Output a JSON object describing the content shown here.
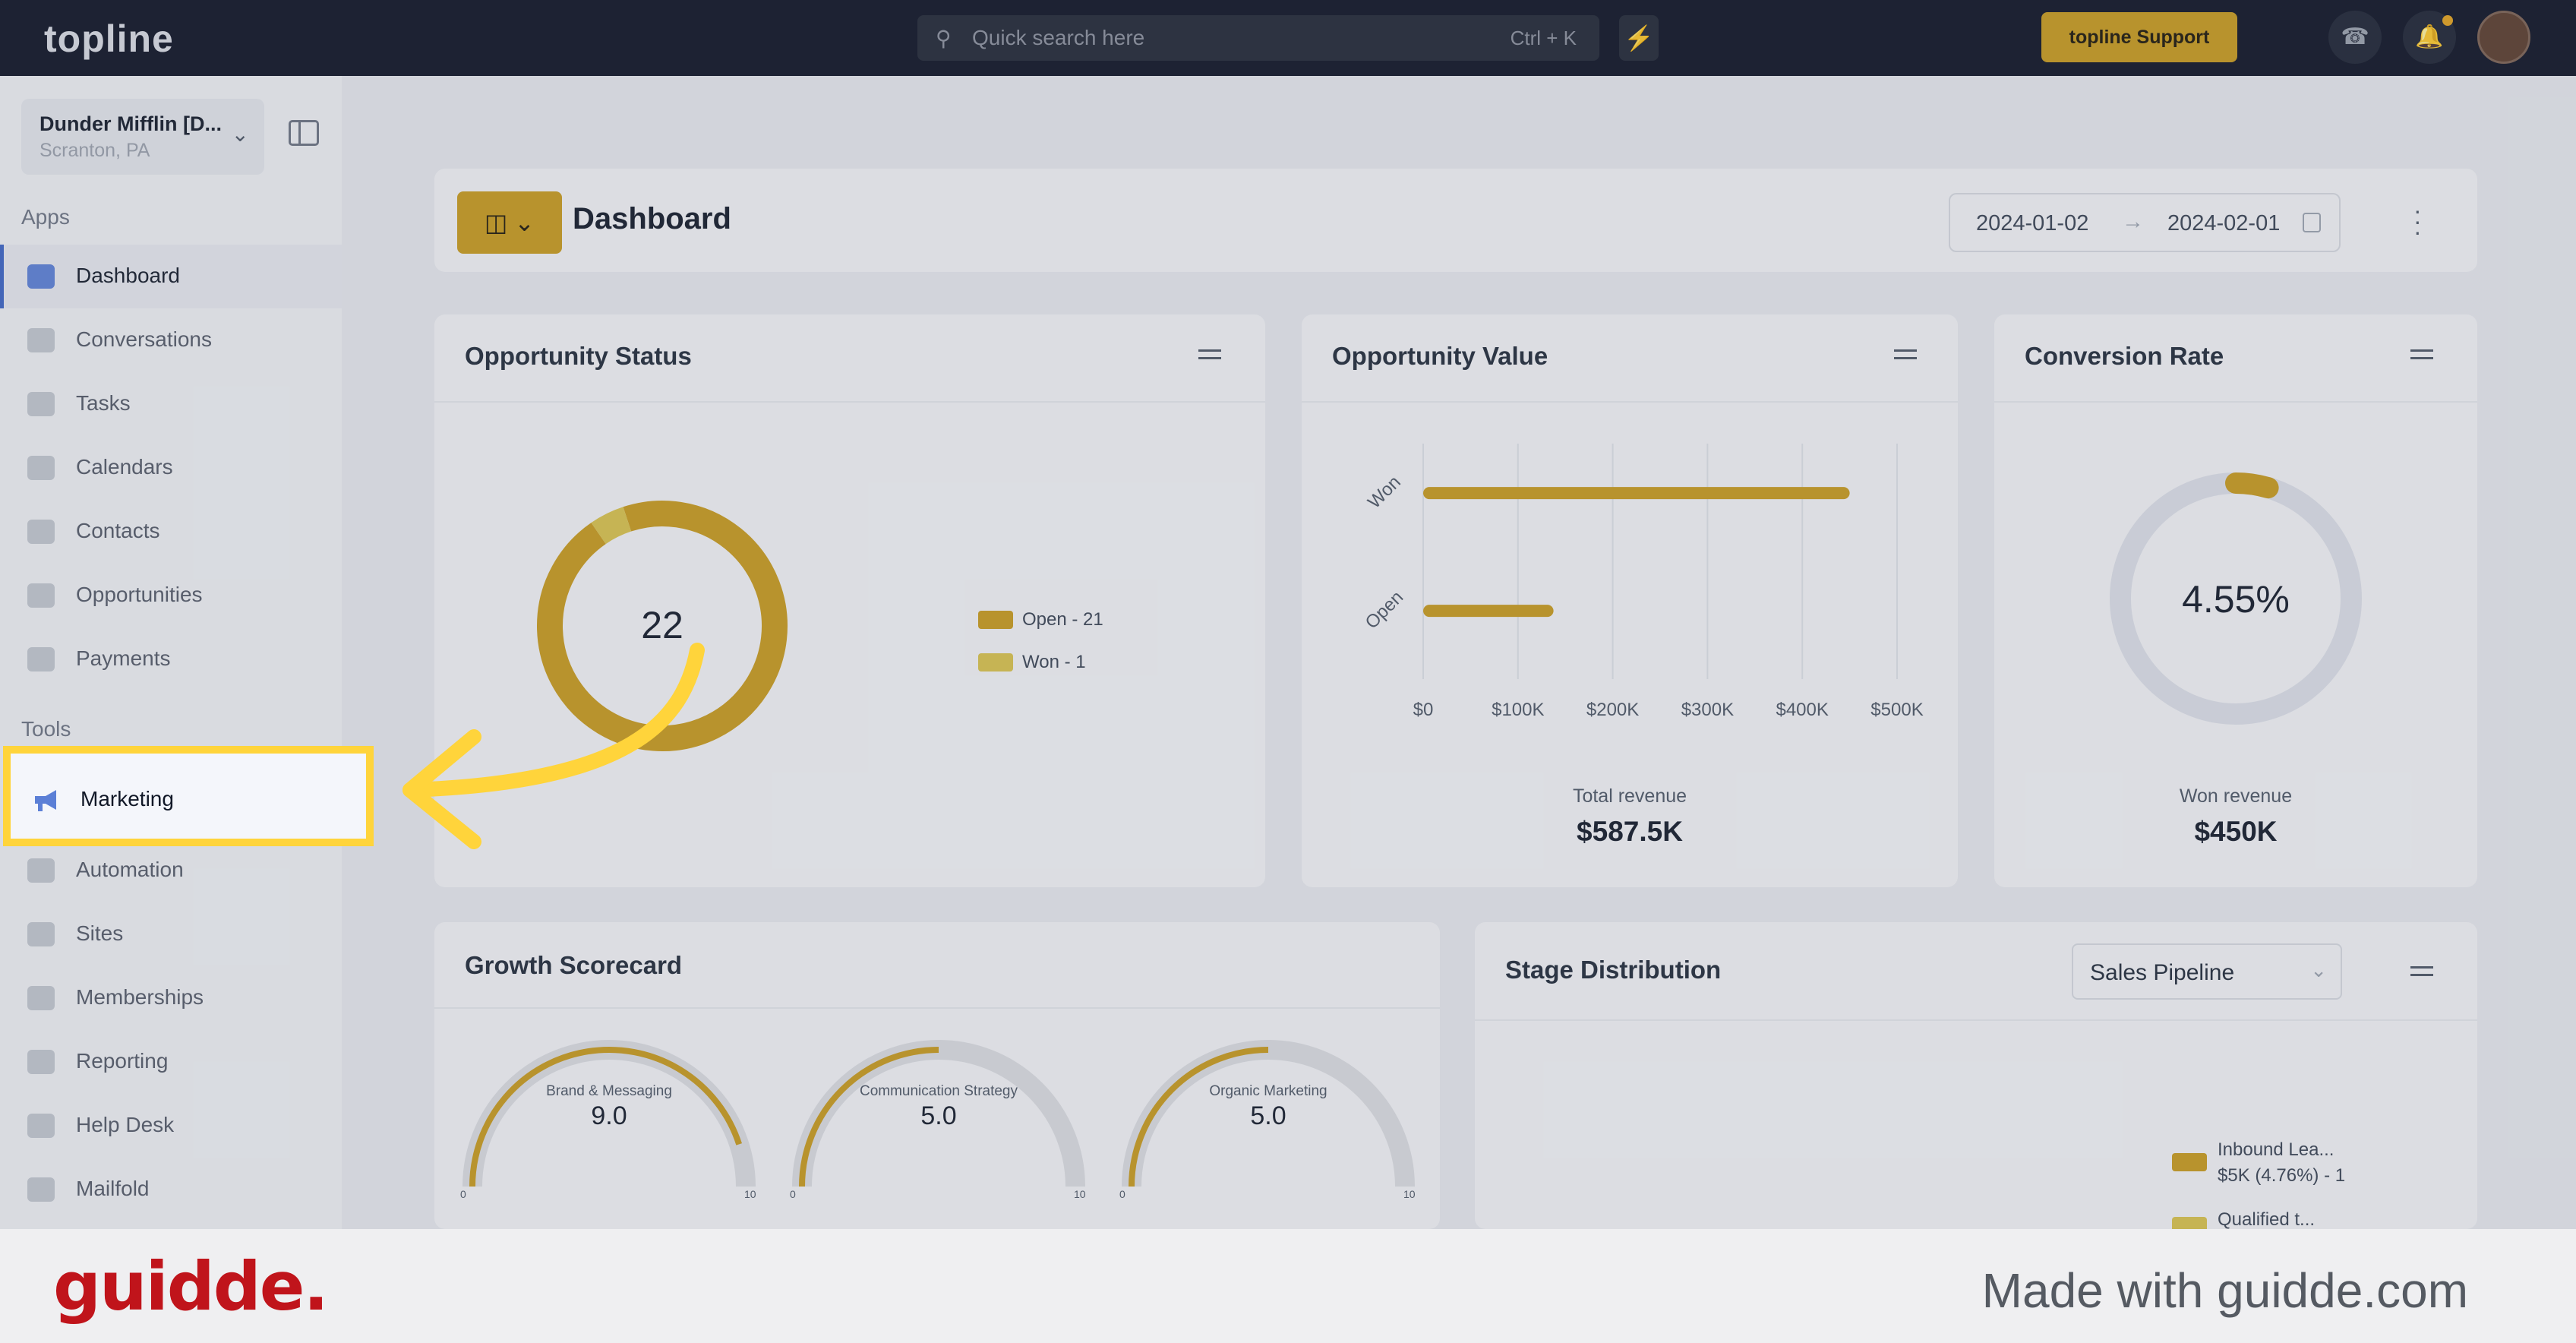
{
  "topbar": {
    "logo": "topline",
    "search_placeholder": "Quick search here",
    "search_shortcut": "Ctrl + K",
    "support_label": "topline Support"
  },
  "sidebar": {
    "company_name": "Dunder Mifflin [D...",
    "company_location": "Scranton, PA",
    "apps_heading": "Apps",
    "apps": [
      {
        "label": "Dashboard",
        "icon": "dashboard-icon",
        "active": true
      },
      {
        "label": "Conversations",
        "icon": "chat-icon"
      },
      {
        "label": "Tasks",
        "icon": "task-icon"
      },
      {
        "label": "Calendars",
        "icon": "calendar-icon"
      },
      {
        "label": "Contacts",
        "icon": "person-icon"
      },
      {
        "label": "Opportunities",
        "icon": "target-icon"
      },
      {
        "label": "Payments",
        "icon": "card-icon"
      }
    ],
    "tools_heading": "Tools",
    "tools": [
      {
        "label": "Marketing",
        "icon": "megaphone-icon",
        "highlighted": true
      },
      {
        "label": "Automation",
        "icon": "gears-icon"
      },
      {
        "label": "Sites",
        "icon": "globe-icon"
      },
      {
        "label": "Memberships",
        "icon": "group-icon"
      },
      {
        "label": "Reporting",
        "icon": "pie-icon"
      },
      {
        "label": "Help Desk",
        "icon": "help-icon"
      },
      {
        "label": "Mailfold",
        "icon": "mail-icon"
      }
    ]
  },
  "dashboard": {
    "title": "Dashboard",
    "date_start": "2024-01-02",
    "date_end": "2024-02-01"
  },
  "opportunity_status": {
    "title": "Opportunity Status",
    "total": "22",
    "legend": [
      {
        "label": "Open - 21",
        "color": "#c99a1a"
      },
      {
        "label": "Won - 1",
        "color": "#d9c24a"
      }
    ]
  },
  "opportunity_value": {
    "title": "Opportunity Value",
    "total_label": "Total revenue",
    "total_value": "$587.5K"
  },
  "conversion_rate": {
    "title": "Conversion Rate",
    "rate": "4.55%",
    "won_label": "Won revenue",
    "won_value": "$450K"
  },
  "growth_scorecard": {
    "title": "Growth Scorecard",
    "gauges": [
      {
        "label": "Brand & Messaging",
        "value": "9.0",
        "min": "0",
        "max": "10"
      },
      {
        "label": "Communication Strategy",
        "value": "5.0",
        "min": "0",
        "max": "10"
      },
      {
        "label": "Organic Marketing",
        "value": "5.0",
        "min": "0",
        "max": "10"
      }
    ]
  },
  "stage_distribution": {
    "title": "Stage Distribution",
    "pipeline": "Sales Pipeline",
    "legend": [
      {
        "label": "Inbound Lea...",
        "sub": "$5K (4.76%) - 1",
        "color": "#c99a1a"
      },
      {
        "label": "Qualified t...",
        "color": "#d9c24a"
      }
    ]
  },
  "chart_data": [
    {
      "type": "pie",
      "title": "Opportunity Status",
      "categories": [
        "Open",
        "Won"
      ],
      "values": [
        21,
        1
      ]
    },
    {
      "type": "bar",
      "title": "Opportunity Value",
      "orientation": "horizontal",
      "categories": [
        "Won",
        "Open"
      ],
      "values": [
        450000,
        137500
      ],
      "xlim": [
        0,
        500000
      ],
      "xticks": [
        "$0",
        "$100K",
        "$200K",
        "$300K",
        "$400K",
        "$500K"
      ]
    }
  ],
  "footer": {
    "brand": "guidde.",
    "made_with": "Made with guidde.com"
  }
}
